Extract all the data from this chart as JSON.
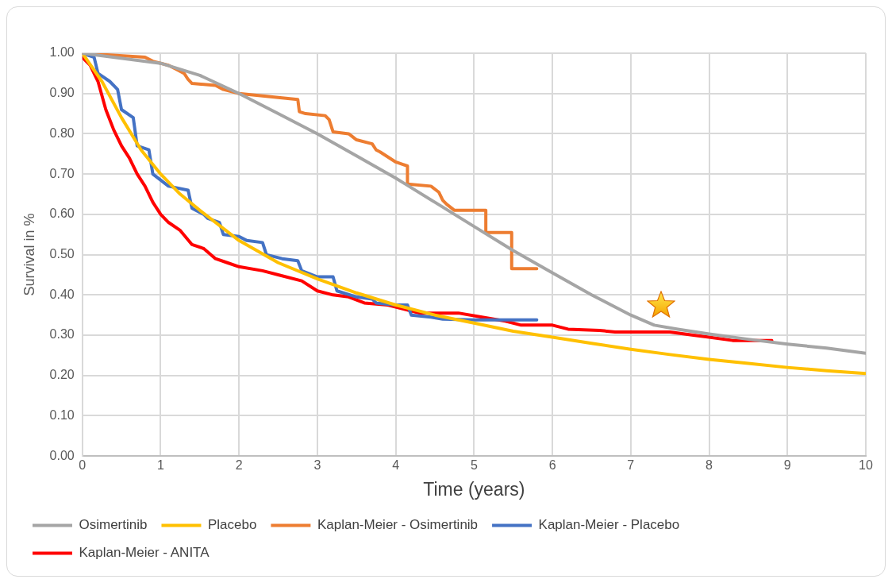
{
  "chart_data": {
    "type": "line",
    "xlabel": "Time (years)",
    "ylabel": "Survival in %",
    "xlim": [
      0,
      10
    ],
    "xticks": [
      0,
      1,
      2,
      3,
      4,
      5,
      6,
      7,
      8,
      9,
      10
    ],
    "ylim": [
      0,
      1
    ],
    "yticks": [
      {
        "value": 0,
        "label": "0.00"
      },
      {
        "value": 0.1,
        "label": "0.10"
      },
      {
        "value": 0.2,
        "label": "0.20"
      },
      {
        "value": 0.3,
        "label": "0.30"
      },
      {
        "value": 0.4,
        "label": "0.40"
      },
      {
        "value": 0.5,
        "label": "0.50"
      },
      {
        "value": 0.6,
        "label": "0.60"
      },
      {
        "value": 0.7,
        "label": "0.70"
      },
      {
        "value": 0.8,
        "label": "0.80"
      },
      {
        "value": 0.9,
        "label": "0.90"
      },
      {
        "value": 1,
        "label": "1.00"
      }
    ],
    "grid": true,
    "legend": "bottom",
    "marker": "none",
    "line_style": "solid",
    "series": [
      {
        "name": "Osimertinib",
        "color": "#a5a5a5",
        "x": [
          0,
          1,
          1.5,
          2,
          2.5,
          3,
          3.5,
          4,
          4.5,
          5,
          5.5,
          6,
          6.5,
          7,
          7.3,
          7.6,
          8,
          8.5,
          9,
          9.5,
          10
        ],
        "values": [
          1,
          0.975,
          0.945,
          0.9,
          0.85,
          0.8,
          0.745,
          0.69,
          0.63,
          0.57,
          0.51,
          0.455,
          0.4,
          0.35,
          0.325,
          0.315,
          0.303,
          0.29,
          0.278,
          0.268,
          0.255
        ]
      },
      {
        "name": "Placebo",
        "color": "#ffc000",
        "x": [
          0,
          0.25,
          0.5,
          0.75,
          1,
          1.25,
          1.5,
          2,
          2.5,
          3,
          3.5,
          4,
          4.5,
          5,
          5.5,
          6,
          6.5,
          7,
          7.5,
          8,
          8.5,
          9,
          9.5,
          10
        ],
        "values": [
          1,
          0.93,
          0.84,
          0.76,
          0.7,
          0.65,
          0.61,
          0.535,
          0.48,
          0.44,
          0.405,
          0.375,
          0.35,
          0.33,
          0.31,
          0.295,
          0.28,
          0.265,
          0.252,
          0.24,
          0.23,
          0.22,
          0.212,
          0.205
        ]
      },
      {
        "name": "Kaplan-Meier - Osimertinib",
        "color": "#ed7d31",
        "x": [
          0,
          0.8,
          0.9,
          1.1,
          1.2,
          1.3,
          1.35,
          1.4,
          1.7,
          1.8,
          2,
          2.5,
          2.75,
          2.77,
          2.85,
          3.1,
          3.15,
          3.2,
          3.4,
          3.5,
          3.7,
          3.75,
          3.8,
          4,
          4.15,
          4.15,
          4.45,
          4.55,
          4.6,
          4.65,
          4.75,
          5.15,
          5.15,
          5.48,
          5.48,
          5.8
        ],
        "values": [
          1,
          0.99,
          0.98,
          0.97,
          0.96,
          0.95,
          0.935,
          0.925,
          0.92,
          0.91,
          0.9,
          0.89,
          0.885,
          0.855,
          0.85,
          0.845,
          0.835,
          0.805,
          0.8,
          0.785,
          0.775,
          0.76,
          0.755,
          0.73,
          0.72,
          0.675,
          0.67,
          0.655,
          0.635,
          0.625,
          0.61,
          0.61,
          0.555,
          0.555,
          0.465,
          0.465
        ]
      },
      {
        "name": "Kaplan-Meier - Placebo",
        "color": "#4472c4",
        "x": [
          0,
          0.15,
          0.2,
          0.35,
          0.45,
          0.5,
          0.65,
          0.7,
          0.85,
          0.9,
          1.1,
          1.35,
          1.4,
          1.55,
          1.6,
          1.75,
          1.8,
          2,
          2.1,
          2.3,
          2.35,
          2.55,
          2.75,
          2.8,
          3,
          3.2,
          3.25,
          3.5,
          3.7,
          3.75,
          4,
          4.15,
          4.2,
          4.45,
          4.6,
          5,
          5.8
        ],
        "values": [
          1,
          0.99,
          0.95,
          0.93,
          0.91,
          0.86,
          0.84,
          0.77,
          0.76,
          0.7,
          0.67,
          0.66,
          0.615,
          0.6,
          0.59,
          0.58,
          0.55,
          0.545,
          0.535,
          0.53,
          0.5,
          0.49,
          0.485,
          0.46,
          0.445,
          0.445,
          0.41,
          0.395,
          0.39,
          0.38,
          0.375,
          0.375,
          0.35,
          0.345,
          0.34,
          0.338,
          0.338
        ]
      },
      {
        "name": "Kaplan-Meier - ANITA",
        "color": "#ff0000",
        "x": [
          0,
          0.1,
          0.2,
          0.3,
          0.4,
          0.5,
          0.6,
          0.7,
          0.8,
          0.9,
          1,
          1.1,
          1.25,
          1.4,
          1.55,
          1.7,
          1.85,
          2,
          2.3,
          2.5,
          2.8,
          3,
          3.2,
          3.4,
          3.6,
          3.9,
          4.1,
          4.3,
          4.8,
          5.1,
          5.4,
          5.6,
          6,
          6.2,
          6.6,
          6.8,
          7.5,
          7.8,
          8,
          8.3,
          8.8
        ],
        "values": [
          0.99,
          0.97,
          0.93,
          0.86,
          0.81,
          0.77,
          0.74,
          0.7,
          0.67,
          0.63,
          0.6,
          0.58,
          0.56,
          0.525,
          0.515,
          0.49,
          0.48,
          0.47,
          0.46,
          0.45,
          0.435,
          0.41,
          0.4,
          0.395,
          0.38,
          0.375,
          0.365,
          0.355,
          0.355,
          0.345,
          0.335,
          0.325,
          0.325,
          0.315,
          0.312,
          0.308,
          0.308,
          0.3,
          0.295,
          0.287,
          0.287
        ]
      }
    ]
  }
}
